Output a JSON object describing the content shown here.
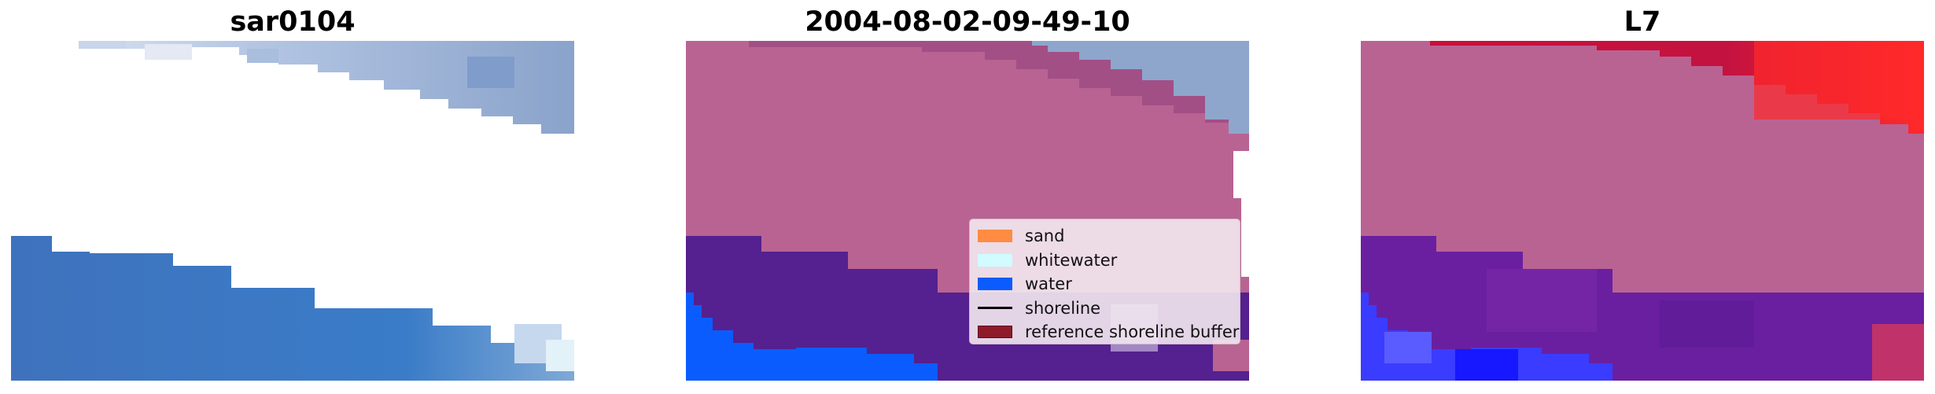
{
  "panels": [
    {
      "title": "sar0104"
    },
    {
      "title": "2004-08-02-09-49-10"
    },
    {
      "title": "L7"
    }
  ],
  "legend": {
    "items": [
      {
        "label": "sand",
        "color": "#ff8c42",
        "kind": "patch"
      },
      {
        "label": "whitewater",
        "color": "#d0fbff",
        "kind": "patch"
      },
      {
        "label": "water",
        "color": "#0b5cff",
        "kind": "patch"
      },
      {
        "label": "shoreline",
        "color": "#000000",
        "kind": "line"
      },
      {
        "label": "reference shoreline buffer",
        "color": "#8e1a2a",
        "kind": "patch"
      }
    ]
  },
  "colors": {
    "sky_blue": "#8ea6cc",
    "sky_light": "#c9d4e8",
    "water_blue": "#3d74bf",
    "whitewater": "#e6eef8",
    "overlay_pink": "#b96393",
    "overlay_purple": "#55208f",
    "overlay_water": "#0b5cff",
    "prob_red": "#d3123a",
    "prob_bright_red": "#ff2a2a",
    "prob_purple": "#6a1fa0",
    "prob_blue": "#3a3cff"
  }
}
